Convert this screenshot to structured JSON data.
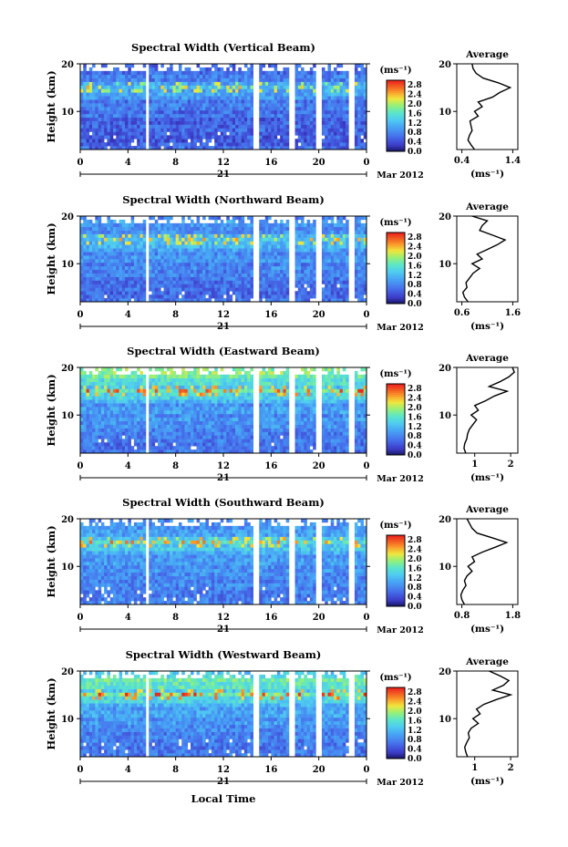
{
  "figure": {
    "x_axis_label": "Local Time",
    "date_label": "Mar 2012",
    "day_label": "21"
  },
  "chart_data": [
    {
      "type": "heatmap",
      "title": "Spectral Width (Vertical Beam)",
      "ylabel": "Height (km)",
      "xlabel": "Local Time",
      "x_ticks": [
        "0",
        "4",
        "8",
        "12",
        "16",
        "20",
        "0"
      ],
      "y_ticks": [
        "10",
        "20"
      ],
      "xlim": [
        0,
        24
      ],
      "ylim": [
        2,
        20
      ],
      "colorbar": {
        "unit": "(ms⁻¹)",
        "ticks": [
          "0.0",
          "0.4",
          "0.8",
          "1.2",
          "1.6",
          "2.0",
          "2.4",
          "2.8"
        ],
        "range": [
          0,
          3.0
        ]
      },
      "data_gaps_hours": [
        [
          5.4,
          5.8
        ],
        [
          14.4,
          14.9
        ],
        [
          17.4,
          17.9
        ],
        [
          19.8,
          20.3
        ],
        [
          22.6,
          22.9
        ]
      ],
      "profile": {
        "title": "Average",
        "x_ticks": [
          "0.4",
          "1.4"
        ],
        "xlim": [
          0.3,
          1.5
        ],
        "unit": "(ms⁻¹)",
        "height_km": [
          2,
          3,
          4,
          5,
          6,
          7,
          8,
          9,
          10,
          11,
          12,
          13,
          14,
          15,
          16,
          17,
          18,
          19,
          20
        ],
        "values": [
          0.65,
          0.58,
          0.52,
          0.55,
          0.6,
          0.58,
          0.56,
          0.72,
          0.65,
          0.8,
          0.72,
          1.0,
          1.15,
          1.35,
          1.12,
          0.82,
          0.68,
          0.62,
          0.6
        ]
      }
    },
    {
      "type": "heatmap",
      "title": "Spectral Width (Northward Beam)",
      "ylabel": "Height (km)",
      "xlabel": "Local Time",
      "x_ticks": [
        "0",
        "4",
        "8",
        "12",
        "16",
        "20",
        "0"
      ],
      "y_ticks": [
        "10",
        "20"
      ],
      "xlim": [
        0,
        24
      ],
      "ylim": [
        2,
        20
      ],
      "colorbar": {
        "unit": "(ms⁻¹)",
        "ticks": [
          "0.0",
          "0.4",
          "0.8",
          "1.2",
          "1.6",
          "2.0",
          "2.4",
          "2.8"
        ],
        "range": [
          0,
          3.0
        ]
      },
      "data_gaps_hours": [
        [
          5.4,
          5.8
        ],
        [
          14.4,
          14.9
        ],
        [
          17.4,
          17.9
        ],
        [
          19.8,
          20.3
        ],
        [
          22.6,
          22.9
        ]
      ],
      "profile": {
        "title": "Average",
        "x_ticks": [
          "0.6",
          "1.6"
        ],
        "xlim": [
          0.5,
          1.7
        ],
        "unit": "(ms⁻¹)",
        "height_km": [
          2,
          3,
          4,
          5,
          6,
          7,
          8,
          9,
          10,
          11,
          12,
          13,
          14,
          15,
          16,
          17,
          18,
          19,
          20
        ],
        "values": [
          0.72,
          0.65,
          0.62,
          0.7,
          0.68,
          0.75,
          0.82,
          0.95,
          0.8,
          1.0,
          0.9,
          1.1,
          1.3,
          1.45,
          1.2,
          0.95,
          1.0,
          1.1,
          0.8
        ]
      }
    },
    {
      "type": "heatmap",
      "title": "Spectral Width (Eastward Beam)",
      "ylabel": "Height (km)",
      "xlabel": "Local Time",
      "x_ticks": [
        "0",
        "4",
        "8",
        "12",
        "16",
        "20",
        "0"
      ],
      "y_ticks": [
        "10",
        "20"
      ],
      "xlim": [
        0,
        24
      ],
      "ylim": [
        2,
        20
      ],
      "colorbar": {
        "unit": "(ms⁻¹)",
        "ticks": [
          "0.0",
          "0.4",
          "0.8",
          "1.2",
          "1.6",
          "2.0",
          "2.4",
          "2.8"
        ],
        "range": [
          0,
          3.0
        ]
      },
      "data_gaps_hours": [
        [
          5.4,
          5.8
        ],
        [
          14.4,
          14.9
        ],
        [
          17.4,
          17.9
        ],
        [
          19.8,
          20.3
        ],
        [
          22.6,
          22.9
        ]
      ],
      "profile": {
        "title": "Average",
        "x_ticks": [
          "1",
          "2"
        ],
        "xlim": [
          0.5,
          2.2
        ],
        "unit": "(ms⁻¹)",
        "height_km": [
          2,
          3,
          4,
          5,
          6,
          7,
          8,
          9,
          10,
          11,
          12,
          13,
          14,
          15,
          16,
          17,
          18,
          19,
          20
        ],
        "values": [
          0.75,
          0.7,
          0.72,
          0.78,
          0.8,
          0.85,
          0.95,
          1.05,
          0.9,
          1.1,
          1.0,
          1.3,
          1.55,
          1.9,
          1.4,
          1.7,
          1.95,
          2.1,
          2.05
        ]
      }
    },
    {
      "type": "heatmap",
      "title": "Spectral Width (Southward Beam)",
      "ylabel": "Height (km)",
      "xlabel": "Local Time",
      "x_ticks": [
        "0",
        "4",
        "8",
        "12",
        "16",
        "20",
        "0"
      ],
      "y_ticks": [
        "10",
        "20"
      ],
      "xlim": [
        0,
        24
      ],
      "ylim": [
        2,
        20
      ],
      "colorbar": {
        "unit": "(ms⁻¹)",
        "ticks": [
          "0.0",
          "0.4",
          "0.8",
          "1.2",
          "1.6",
          "2.0",
          "2.4",
          "2.8"
        ],
        "range": [
          0,
          3.0
        ]
      },
      "data_gaps_hours": [
        [
          5.4,
          5.8
        ],
        [
          14.4,
          14.9
        ],
        [
          17.4,
          17.9
        ],
        [
          19.8,
          20.3
        ],
        [
          22.6,
          22.9
        ]
      ],
      "profile": {
        "title": "Average",
        "x_ticks": [
          "0.8",
          "1.8"
        ],
        "xlim": [
          0.7,
          1.9
        ],
        "unit": "(ms⁻¹)",
        "height_km": [
          2,
          3,
          4,
          5,
          6,
          7,
          8,
          9,
          10,
          11,
          12,
          13,
          14,
          15,
          16,
          17,
          18,
          19,
          20
        ],
        "values": [
          0.85,
          0.8,
          0.78,
          0.82,
          0.88,
          0.85,
          0.9,
          1.0,
          0.92,
          1.05,
          1.0,
          1.2,
          1.45,
          1.68,
          1.4,
          1.1,
          1.0,
          0.95,
          0.9
        ]
      }
    },
    {
      "type": "heatmap",
      "title": "Spectral Width (Westward Beam)",
      "ylabel": "Height (km)",
      "xlabel": "Local Time",
      "x_ticks": [
        "0",
        "4",
        "8",
        "12",
        "16",
        "20",
        "0"
      ],
      "y_ticks": [
        "10",
        "20"
      ],
      "xlim": [
        0,
        24
      ],
      "ylim": [
        2,
        20
      ],
      "colorbar": {
        "unit": "(ms⁻¹)",
        "ticks": [
          "0.0",
          "0.4",
          "0.8",
          "1.2",
          "1.6",
          "2.0",
          "2.4",
          "2.8"
        ],
        "range": [
          0,
          3.0
        ]
      },
      "data_gaps_hours": [
        [
          5.4,
          5.8
        ],
        [
          14.4,
          14.9
        ],
        [
          17.4,
          17.9
        ],
        [
          19.8,
          20.3
        ],
        [
          22.6,
          22.9
        ]
      ],
      "profile": {
        "title": "Average",
        "x_ticks": [
          "1",
          "2"
        ],
        "xlim": [
          0.5,
          2.2
        ],
        "unit": "(ms⁻¹)",
        "height_km": [
          2,
          3,
          4,
          5,
          6,
          7,
          8,
          9,
          10,
          11,
          12,
          13,
          14,
          15,
          16,
          17,
          18,
          19,
          20
        ],
        "values": [
          0.8,
          0.75,
          0.72,
          0.78,
          0.85,
          0.82,
          0.9,
          1.1,
          0.95,
          1.15,
          1.05,
          1.25,
          1.6,
          2.0,
          1.5,
          1.8,
          1.95,
          1.7,
          1.4
        ]
      }
    }
  ]
}
